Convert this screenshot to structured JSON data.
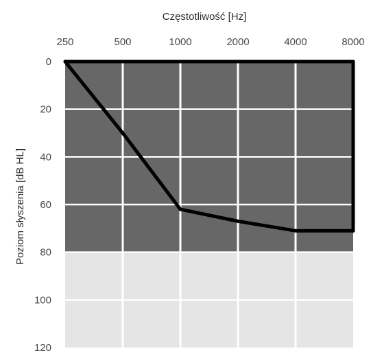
{
  "chart_data": {
    "type": "line",
    "title": "",
    "xlabel": "Częstotliwość [Hz]",
    "ylabel": "Poziom słyszenia [dB HL]",
    "x_axis_position": "top",
    "y_axis_inverted": true,
    "categories": [
      "250",
      "500",
      "1000",
      "2000",
      "4000",
      "8000"
    ],
    "y_ticks": [
      "0",
      "20",
      "40",
      "60",
      "80",
      "100",
      "120"
    ],
    "ylim": [
      0,
      120
    ],
    "grid": true,
    "legend": "none",
    "series": [
      {
        "name": "",
        "values": [
          0,
          30,
          62,
          67,
          71,
          71
        ],
        "color": "#000000",
        "extra_segment_8000": [
          71,
          0
        ]
      }
    ],
    "bands": [
      {
        "from": 0,
        "to": 80,
        "color": "#676767"
      },
      {
        "from": 80,
        "to": 120,
        "color": "#e5e5e5"
      }
    ],
    "colors": {
      "grid": "#ffffff",
      "text": "#4a4a4a"
    }
  }
}
